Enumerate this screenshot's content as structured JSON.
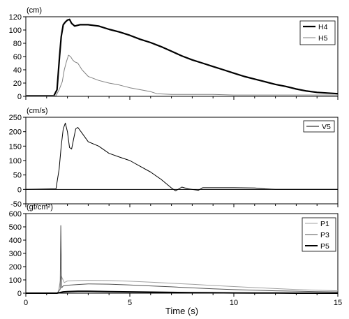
{
  "chart_data": [
    {
      "type": "line",
      "unit": "(cm)",
      "xlim": [
        0,
        15
      ],
      "ylim": [
        0,
        120
      ],
      "yticks": [
        0,
        20,
        40,
        60,
        80,
        100,
        120
      ],
      "xticks": [
        0,
        5,
        10,
        15
      ],
      "show_x_tick_labels": false,
      "grid": false,
      "legend": "top-right",
      "series": [
        {
          "name": "H4",
          "color": "#000000",
          "width": 2.2,
          "x": [
            0,
            1.35,
            1.5,
            1.62,
            1.7,
            1.8,
            1.9,
            2.0,
            2.1,
            2.2,
            2.35,
            2.6,
            3,
            3.5,
            4,
            4.5,
            5,
            5.5,
            6,
            6.5,
            7,
            7.5,
            8,
            8.5,
            9,
            9.5,
            10,
            10.5,
            11,
            11.5,
            12,
            12.5,
            13,
            13.5,
            14,
            14.5,
            15
          ],
          "y": [
            1,
            1,
            10,
            60,
            90,
            108,
            112,
            115,
            116,
            110,
            106,
            108,
            108,
            106,
            101,
            97,
            92,
            86,
            81,
            75,
            68,
            61,
            55,
            50,
            45,
            40,
            35,
            30,
            26,
            22,
            18,
            15,
            11,
            8,
            6,
            5,
            4
          ]
        },
        {
          "name": "H5",
          "color": "#808080",
          "width": 1,
          "x": [
            0,
            1.45,
            1.6,
            1.75,
            1.85,
            1.95,
            2.05,
            2.15,
            2.25,
            2.35,
            2.5,
            2.7,
            3,
            3.5,
            4,
            4.5,
            5,
            5.5,
            6,
            6.3,
            7,
            8,
            9,
            10,
            11,
            12,
            13,
            14,
            15
          ],
          "y": [
            1,
            1,
            10,
            22,
            40,
            52,
            62,
            60,
            55,
            52,
            50,
            40,
            30,
            24,
            20,
            17,
            13,
            10,
            7,
            4,
            3,
            3,
            3,
            2,
            2,
            2,
            2,
            2,
            2
          ]
        }
      ]
    },
    {
      "type": "line",
      "unit": "(cm/s)",
      "xlim": [
        0,
        15
      ],
      "ylim": [
        -50,
        250
      ],
      "yticks": [
        -50,
        0,
        50,
        100,
        150,
        200,
        250
      ],
      "xticks": [
        0,
        5,
        10,
        15
      ],
      "show_x_tick_labels": false,
      "grid": false,
      "legend": "top-right",
      "series": [
        {
          "name": "V5",
          "color": "#000000",
          "width": 1,
          "x": [
            0,
            1.45,
            1.6,
            1.7,
            1.8,
            1.9,
            2.0,
            2.1,
            2.2,
            2.3,
            2.4,
            2.5,
            2.7,
            3,
            3.5,
            4,
            4.5,
            5,
            5.5,
            6,
            6.5,
            7,
            7.2,
            7.5,
            7.8,
            8.3,
            8.5,
            9,
            10,
            11,
            11.5,
            12,
            15
          ],
          "y": [
            0,
            2,
            70,
            150,
            210,
            230,
            200,
            145,
            140,
            175,
            210,
            215,
            195,
            165,
            150,
            125,
            112,
            100,
            80,
            60,
            35,
            5,
            -5,
            8,
            2,
            -3,
            6,
            6,
            6,
            5,
            2,
            0,
            0
          ]
        }
      ]
    },
    {
      "type": "line",
      "unit": "(gf/cm²)",
      "xlim": [
        0,
        15
      ],
      "ylim": [
        0,
        600
      ],
      "yticks": [
        0,
        100,
        200,
        300,
        400,
        500,
        600
      ],
      "xticks": [
        0,
        5,
        10,
        15
      ],
      "xtick_labels": [
        "0",
        "5",
        "10",
        "15"
      ],
      "xlabel": "Time (s)",
      "grid": false,
      "legend": "bottom-right",
      "series": [
        {
          "name": "P1",
          "color": "#a0a0a0",
          "width": 1,
          "x": [
            0,
            1.55,
            1.7,
            1.85,
            2,
            2.5,
            3,
            4,
            5,
            6,
            7,
            8,
            9,
            10,
            11,
            12,
            13,
            14,
            15
          ],
          "y": [
            0,
            0,
            130,
            80,
            92,
            95,
            97,
            95,
            90,
            83,
            75,
            67,
            58,
            50,
            42,
            35,
            28,
            22,
            18
          ]
        },
        {
          "name": "P3",
          "color": "#505050",
          "width": 1,
          "x": [
            0,
            1.5,
            1.65,
            1.68,
            1.72,
            1.8,
            2,
            2.5,
            3,
            4,
            5,
            6,
            7,
            8,
            9,
            10,
            11,
            12,
            13,
            14,
            15
          ],
          "y": [
            0,
            0,
            30,
            510,
            40,
            55,
            60,
            65,
            70,
            68,
            62,
            55,
            48,
            40,
            33,
            27,
            22,
            18,
            15,
            12,
            10
          ]
        },
        {
          "name": "P5",
          "color": "#000000",
          "width": 2,
          "x": [
            0,
            1.5,
            1.8,
            2,
            2.5,
            3,
            3.5,
            4,
            5,
            6,
            7,
            8,
            9,
            10,
            11,
            12,
            13,
            14,
            15
          ],
          "y": [
            0,
            0,
            10,
            12,
            14,
            14,
            13,
            12,
            10,
            8,
            6,
            4,
            3,
            2,
            1,
            1,
            0,
            0,
            0
          ]
        }
      ]
    }
  ]
}
